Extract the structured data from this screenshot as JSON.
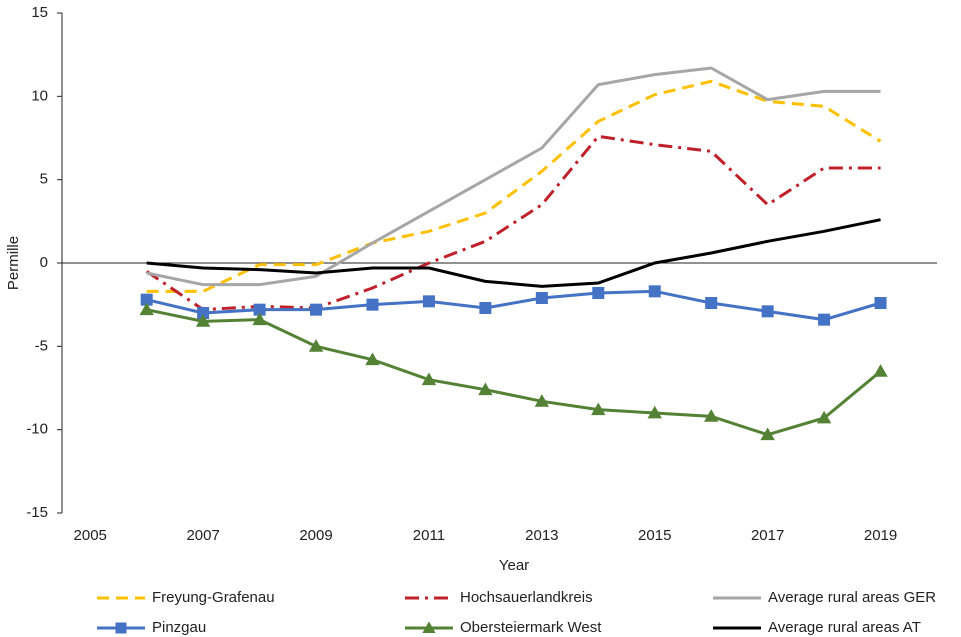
{
  "chart_data": {
    "type": "line",
    "x_label": "Year",
    "y_label": "Permille",
    "x": [
      2006,
      2007,
      2008,
      2009,
      2010,
      2011,
      2012,
      2013,
      2014,
      2015,
      2016,
      2017,
      2018,
      2019
    ],
    "xlim": [
      2004.5,
      2020
    ],
    "xticks": [
      2005,
      2007,
      2009,
      2011,
      2013,
      2015,
      2017,
      2019
    ],
    "ylim": [
      -15,
      15
    ],
    "yticks": [
      -15,
      -10,
      -5,
      0,
      5,
      10,
      15
    ],
    "zero_line": true,
    "grid": false,
    "series": [
      {
        "name": "Freyung-Grafenau",
        "color": "#ffc000",
        "dash": "dashed",
        "values": [
          -1.7,
          -1.7,
          -0.1,
          -0.1,
          1.2,
          1.9,
          3.0,
          5.5,
          8.5,
          10.1,
          10.9,
          9.7,
          9.4,
          7.3
        ]
      },
      {
        "name": "Hochsauerlandkreis",
        "color": "#c0202a",
        "dash": "dashdot",
        "values": [
          -0.5,
          -2.8,
          -2.6,
          -2.7,
          -1.5,
          0.0,
          1.3,
          3.5,
          7.6,
          7.1,
          6.7,
          3.5,
          5.7,
          5.7
        ]
      },
      {
        "name": "Average rural areas GER",
        "color": "#a6a6a6",
        "dash": "solid",
        "values": [
          -0.6,
          -1.3,
          -1.3,
          -0.8,
          1.2,
          3.1,
          5.0,
          6.9,
          10.7,
          11.3,
          11.7,
          9.8,
          10.3,
          10.3
        ]
      },
      {
        "name": "Pinzgau",
        "color": "#4472c4",
        "dash": "solid",
        "marker": "square",
        "values": [
          -2.2,
          -3.0,
          -2.8,
          -2.8,
          -2.5,
          -2.3,
          -2.7,
          -2.1,
          -1.8,
          -1.7,
          -2.4,
          -2.9,
          -3.4,
          -2.4
        ]
      },
      {
        "name": "Obersteiermark West",
        "color": "#548235",
        "dash": "solid",
        "marker": "triangle",
        "values": [
          -2.8,
          -3.5,
          -3.4,
          -5.0,
          -5.8,
          -7.0,
          -7.6,
          -8.3,
          -8.8,
          -9.0,
          -9.2,
          -10.3,
          -9.3,
          -6.5
        ]
      },
      {
        "name": "Average rural areas AT",
        "color": "#000000",
        "dash": "solid",
        "values": [
          0.0,
          -0.3,
          -0.4,
          -0.6,
          -0.3,
          -0.3,
          -1.1,
          -1.4,
          -1.2,
          0.0,
          0.6,
          1.3,
          1.9,
          2.6
        ]
      }
    ]
  }
}
